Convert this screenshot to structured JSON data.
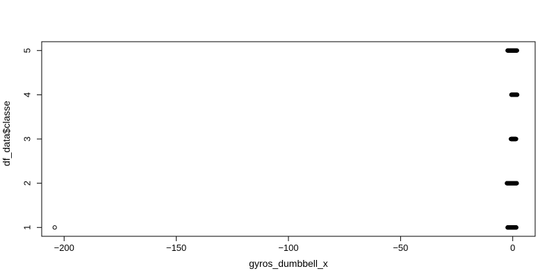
{
  "chart_data": {
    "type": "scatter",
    "title": "",
    "xlabel": "gyros_dumbbell_x",
    "ylabel": "df_data$classe",
    "xlim": [
      -210,
      10
    ],
    "ylim": [
      0.8,
      5.2
    ],
    "x_ticks": [
      -200,
      -150,
      -100,
      -50,
      0
    ],
    "y_ticks": [
      1,
      2,
      3,
      4,
      5
    ],
    "grid": false,
    "outlier": {
      "x": -204.2,
      "y": 1
    },
    "clusters": [
      {
        "y": 1,
        "x_min": -2.3,
        "x_max": 1.6
      },
      {
        "y": 2,
        "x_min": -2.6,
        "x_max": 1.8
      },
      {
        "y": 3,
        "x_min": -0.8,
        "x_max": 1.5
      },
      {
        "y": 4,
        "x_min": -0.6,
        "x_max": 2.0
      },
      {
        "y": 5,
        "x_min": -2.3,
        "x_max": 1.9
      }
    ]
  }
}
